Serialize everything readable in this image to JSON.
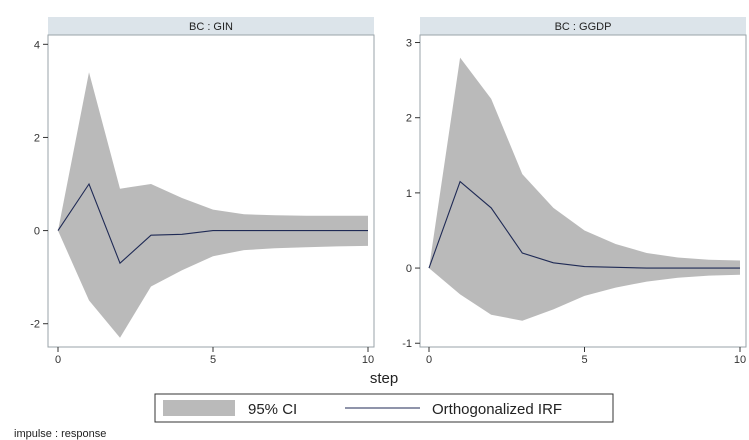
{
  "chart_data": {
    "type": "area",
    "xlabel": "step",
    "note": "impulse : response",
    "legend": {
      "placement": "bottom-center",
      "entries": [
        {
          "key": "ci",
          "label": "95% CI",
          "color": "#9a9a9a"
        },
        {
          "key": "irf",
          "label": "Orthogonalized IRF",
          "color": "#1f2a55"
        }
      ]
    },
    "panels": [
      {
        "title": "BC : GIN",
        "xlim": [
          0,
          10
        ],
        "ylim": [
          -2.5,
          4.2
        ],
        "xticks": [
          0,
          5,
          10
        ],
        "yticks": [
          -2,
          0,
          2,
          4
        ],
        "x": [
          0,
          1,
          2,
          3,
          4,
          5,
          6,
          7,
          8,
          9,
          10
        ],
        "irf": [
          0,
          1.0,
          -0.7,
          -0.1,
          -0.08,
          0,
          0,
          0,
          0,
          0,
          0
        ],
        "ci_upper": [
          0,
          3.4,
          0.9,
          1.0,
          0.7,
          0.45,
          0.35,
          0.33,
          0.32,
          0.32,
          0.32
        ],
        "ci_lower": [
          0,
          -1.5,
          -2.3,
          -1.2,
          -0.85,
          -0.55,
          -0.42,
          -0.38,
          -0.36,
          -0.34,
          -0.33
        ]
      },
      {
        "title": "BC : GGDP",
        "xlim": [
          0,
          10
        ],
        "ylim": [
          -1.05,
          3.1
        ],
        "xticks": [
          0,
          5,
          10
        ],
        "yticks": [
          -1,
          0,
          1,
          2,
          3
        ],
        "x": [
          0,
          1,
          2,
          3,
          4,
          5,
          6,
          7,
          8,
          9,
          10
        ],
        "irf": [
          0,
          1.15,
          0.8,
          0.2,
          0.07,
          0.02,
          0.01,
          0,
          0,
          0,
          0
        ],
        "ci_upper": [
          0,
          2.8,
          2.25,
          1.25,
          0.8,
          0.5,
          0.32,
          0.2,
          0.14,
          0.11,
          0.1
        ],
        "ci_lower": [
          0,
          -0.35,
          -0.62,
          -0.7,
          -0.55,
          -0.37,
          -0.26,
          -0.18,
          -0.13,
          -0.1,
          -0.09
        ]
      }
    ]
  }
}
